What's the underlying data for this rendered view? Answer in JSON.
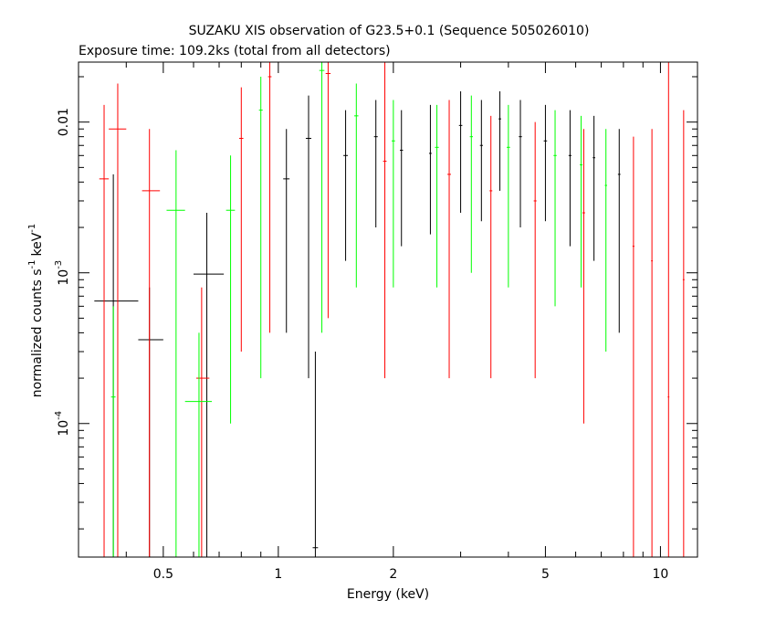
{
  "chart_data": {
    "type": "scatter",
    "title": "SUZAKU XIS observation of G23.5+0.1 (Sequence 505026010)",
    "subtitle": "Exposure time: 109.2ks (total from all detectors)",
    "xlabel": "Energy (keV)",
    "ylabel": "normalized counts s",
    "ylabel_unit_a": "keV",
    "ylabel_exp": "-1",
    "x_scale": "log",
    "y_scale": "log",
    "xlim": [
      0.3,
      12.5
    ],
    "ylim": [
      1.3e-05,
      0.025
    ],
    "x_ticks": [
      {
        "value": 0.5,
        "label": "0.5"
      },
      {
        "value": 1,
        "label": "1"
      },
      {
        "value": 2,
        "label": "2"
      },
      {
        "value": 5,
        "label": "5"
      },
      {
        "value": 10,
        "label": "10"
      }
    ],
    "y_ticks": [
      {
        "value": 0.01,
        "label": "0.01"
      },
      {
        "value": 0.001,
        "label": "10",
        "exp": "-3"
      },
      {
        "value": 0.0001,
        "label": "10",
        "exp": "-4"
      }
    ],
    "colors": {
      "black": "#000000",
      "red": "#ff0000",
      "green": "#00ff00"
    },
    "series": [
      {
        "color": "black",
        "points": [
          {
            "x": 0.37,
            "xl": 0.33,
            "xh": 0.43,
            "y": 0.00065,
            "yl": 1.3e-05,
            "yh": 0.0045
          },
          {
            "x": 0.46,
            "xl": 0.43,
            "xh": 0.5,
            "y": 0.00036,
            "yl": 1.3e-05,
            "yh": 0.0008
          },
          {
            "x": 0.65,
            "xl": 0.6,
            "xh": 0.72,
            "y": 0.00098,
            "yl": 1.3e-05,
            "yh": 0.0025
          },
          {
            "x": 1.05,
            "xl": 1.03,
            "xh": 1.07,
            "y": 0.0042,
            "yl": 0.0004,
            "yh": 0.009
          },
          {
            "x": 1.2,
            "xl": 1.18,
            "xh": 1.22,
            "y": 0.0078,
            "yl": 0.0002,
            "yh": 0.015
          },
          {
            "x": 1.25,
            "xl": 1.23,
            "xh": 1.27,
            "y": 1.5e-05,
            "yl": 1.3e-05,
            "yh": 0.0003
          },
          {
            "x": 1.5,
            "xl": 1.48,
            "xh": 1.52,
            "y": 0.006,
            "yl": 0.0012,
            "yh": 0.012
          },
          {
            "x": 1.8,
            "xl": 1.78,
            "xh": 1.82,
            "y": 0.008,
            "yl": 0.002,
            "yh": 0.014
          },
          {
            "x": 2.1,
            "xl": 2.08,
            "xh": 2.12,
            "y": 0.0065,
            "yl": 0.0015,
            "yh": 0.012
          },
          {
            "x": 2.5,
            "xl": 2.48,
            "xh": 2.52,
            "y": 0.0062,
            "yl": 0.0018,
            "yh": 0.013
          },
          {
            "x": 3.0,
            "xl": 2.97,
            "xh": 3.03,
            "y": 0.0095,
            "yl": 0.0025,
            "yh": 0.016
          },
          {
            "x": 3.4,
            "xl": 3.37,
            "xh": 3.43,
            "y": 0.007,
            "yl": 0.0022,
            "yh": 0.014
          },
          {
            "x": 3.8,
            "xl": 3.77,
            "xh": 3.83,
            "y": 0.0105,
            "yl": 0.0035,
            "yh": 0.016
          },
          {
            "x": 4.3,
            "xl": 4.26,
            "xh": 4.34,
            "y": 0.008,
            "yl": 0.002,
            "yh": 0.014
          },
          {
            "x": 5.0,
            "xl": 4.95,
            "xh": 5.05,
            "y": 0.0075,
            "yl": 0.0022,
            "yh": 0.013
          },
          {
            "x": 5.8,
            "xl": 5.75,
            "xh": 5.85,
            "y": 0.006,
            "yl": 0.0015,
            "yh": 0.012
          },
          {
            "x": 6.7,
            "xl": 6.65,
            "xh": 6.75,
            "y": 0.0058,
            "yl": 0.0012,
            "yh": 0.011
          },
          {
            "x": 7.8,
            "xl": 7.74,
            "xh": 7.86,
            "y": 0.0045,
            "yl": 0.0004,
            "yh": 0.009
          }
        ]
      },
      {
        "color": "red",
        "points": [
          {
            "x": 0.35,
            "xl": 0.34,
            "xh": 0.36,
            "y": 0.0042,
            "yl": 1.3e-05,
            "yh": 0.013
          },
          {
            "x": 0.38,
            "xl": 0.36,
            "xh": 0.4,
            "y": 0.009,
            "yl": 1.3e-05,
            "yh": 0.018
          },
          {
            "x": 0.46,
            "xl": 0.44,
            "xh": 0.49,
            "y": 0.0035,
            "yl": 1.3e-05,
            "yh": 0.009
          },
          {
            "x": 0.63,
            "xl": 0.61,
            "xh": 0.66,
            "y": 0.0002,
            "yl": 1.3e-05,
            "yh": 0.0008
          },
          {
            "x": 0.8,
            "xl": 0.79,
            "xh": 0.81,
            "y": 0.0078,
            "yl": 0.0003,
            "yh": 0.017
          },
          {
            "x": 0.95,
            "xl": 0.94,
            "xh": 0.96,
            "y": 0.02,
            "yl": 0.0004,
            "yh": 0.025
          },
          {
            "x": 1.35,
            "xl": 1.33,
            "xh": 1.37,
            "y": 0.021,
            "yl": 0.0005,
            "yh": 0.025
          },
          {
            "x": 1.9,
            "xl": 1.88,
            "xh": 1.92,
            "y": 0.0055,
            "yl": 0.0002,
            "yh": 0.025
          },
          {
            "x": 2.8,
            "xl": 2.77,
            "xh": 2.83,
            "y": 0.0045,
            "yl": 0.0002,
            "yh": 0.014
          },
          {
            "x": 3.6,
            "xl": 3.57,
            "xh": 3.63,
            "y": 0.0035,
            "yl": 0.0002,
            "yh": 0.011
          },
          {
            "x": 4.7,
            "xl": 4.66,
            "xh": 4.74,
            "y": 0.003,
            "yl": 0.0002,
            "yh": 0.01
          },
          {
            "x": 6.3,
            "xl": 6.25,
            "xh": 6.35,
            "y": 0.0025,
            "yl": 0.0001,
            "yh": 0.009
          },
          {
            "x": 8.5,
            "xl": 8.45,
            "xh": 8.55,
            "y": 0.0015,
            "yl": 1.3e-05,
            "yh": 0.008
          },
          {
            "x": 9.5,
            "xl": 9.45,
            "xh": 9.55,
            "y": 0.0012,
            "yl": 1.3e-05,
            "yh": 0.009
          },
          {
            "x": 10.5,
            "xl": 10.45,
            "xh": 10.55,
            "y": 0.00015,
            "yl": 1.3e-05,
            "yh": 0.025
          },
          {
            "x": 11.5,
            "xl": 11.44,
            "xh": 11.56,
            "y": 0.0009,
            "yl": 1.3e-05,
            "yh": 0.012
          }
        ]
      },
      {
        "color": "green",
        "points": [
          {
            "x": 0.37,
            "xl": 0.365,
            "xh": 0.375,
            "y": 0.00015,
            "yl": 1.3e-05,
            "yh": 0.0006
          },
          {
            "x": 0.54,
            "xl": 0.51,
            "xh": 0.57,
            "y": 0.0026,
            "yl": 1.3e-05,
            "yh": 0.0065
          },
          {
            "x": 0.62,
            "xl": 0.57,
            "xh": 0.67,
            "y": 0.00014,
            "yl": 1.3e-05,
            "yh": 0.0004
          },
          {
            "x": 0.75,
            "xl": 0.73,
            "xh": 0.77,
            "y": 0.0026,
            "yl": 0.0001,
            "yh": 0.006
          },
          {
            "x": 0.9,
            "xl": 0.89,
            "xh": 0.91,
            "y": 0.012,
            "yl": 0.0002,
            "yh": 0.02
          },
          {
            "x": 1.3,
            "xl": 1.28,
            "xh": 1.32,
            "y": 0.022,
            "yl": 0.0004,
            "yh": 0.025
          },
          {
            "x": 1.6,
            "xl": 1.58,
            "xh": 1.62,
            "y": 0.011,
            "yl": 0.0008,
            "yh": 0.018
          },
          {
            "x": 2.0,
            "xl": 1.98,
            "xh": 2.02,
            "y": 0.0075,
            "yl": 0.0008,
            "yh": 0.014
          },
          {
            "x": 2.6,
            "xl": 2.57,
            "xh": 2.63,
            "y": 0.0068,
            "yl": 0.0008,
            "yh": 0.013
          },
          {
            "x": 3.2,
            "xl": 3.17,
            "xh": 3.23,
            "y": 0.008,
            "yl": 0.001,
            "yh": 0.015
          },
          {
            "x": 4.0,
            "xl": 3.96,
            "xh": 4.04,
            "y": 0.0068,
            "yl": 0.0008,
            "yh": 0.013
          },
          {
            "x": 5.3,
            "xl": 5.25,
            "xh": 5.35,
            "y": 0.006,
            "yl": 0.0006,
            "yh": 0.012
          },
          {
            "x": 6.2,
            "xl": 6.15,
            "xh": 6.25,
            "y": 0.0052,
            "yl": 0.0008,
            "yh": 0.011
          },
          {
            "x": 7.2,
            "xl": 7.15,
            "xh": 7.25,
            "y": 0.0038,
            "yl": 0.0003,
            "yh": 0.009
          }
        ]
      }
    ]
  }
}
